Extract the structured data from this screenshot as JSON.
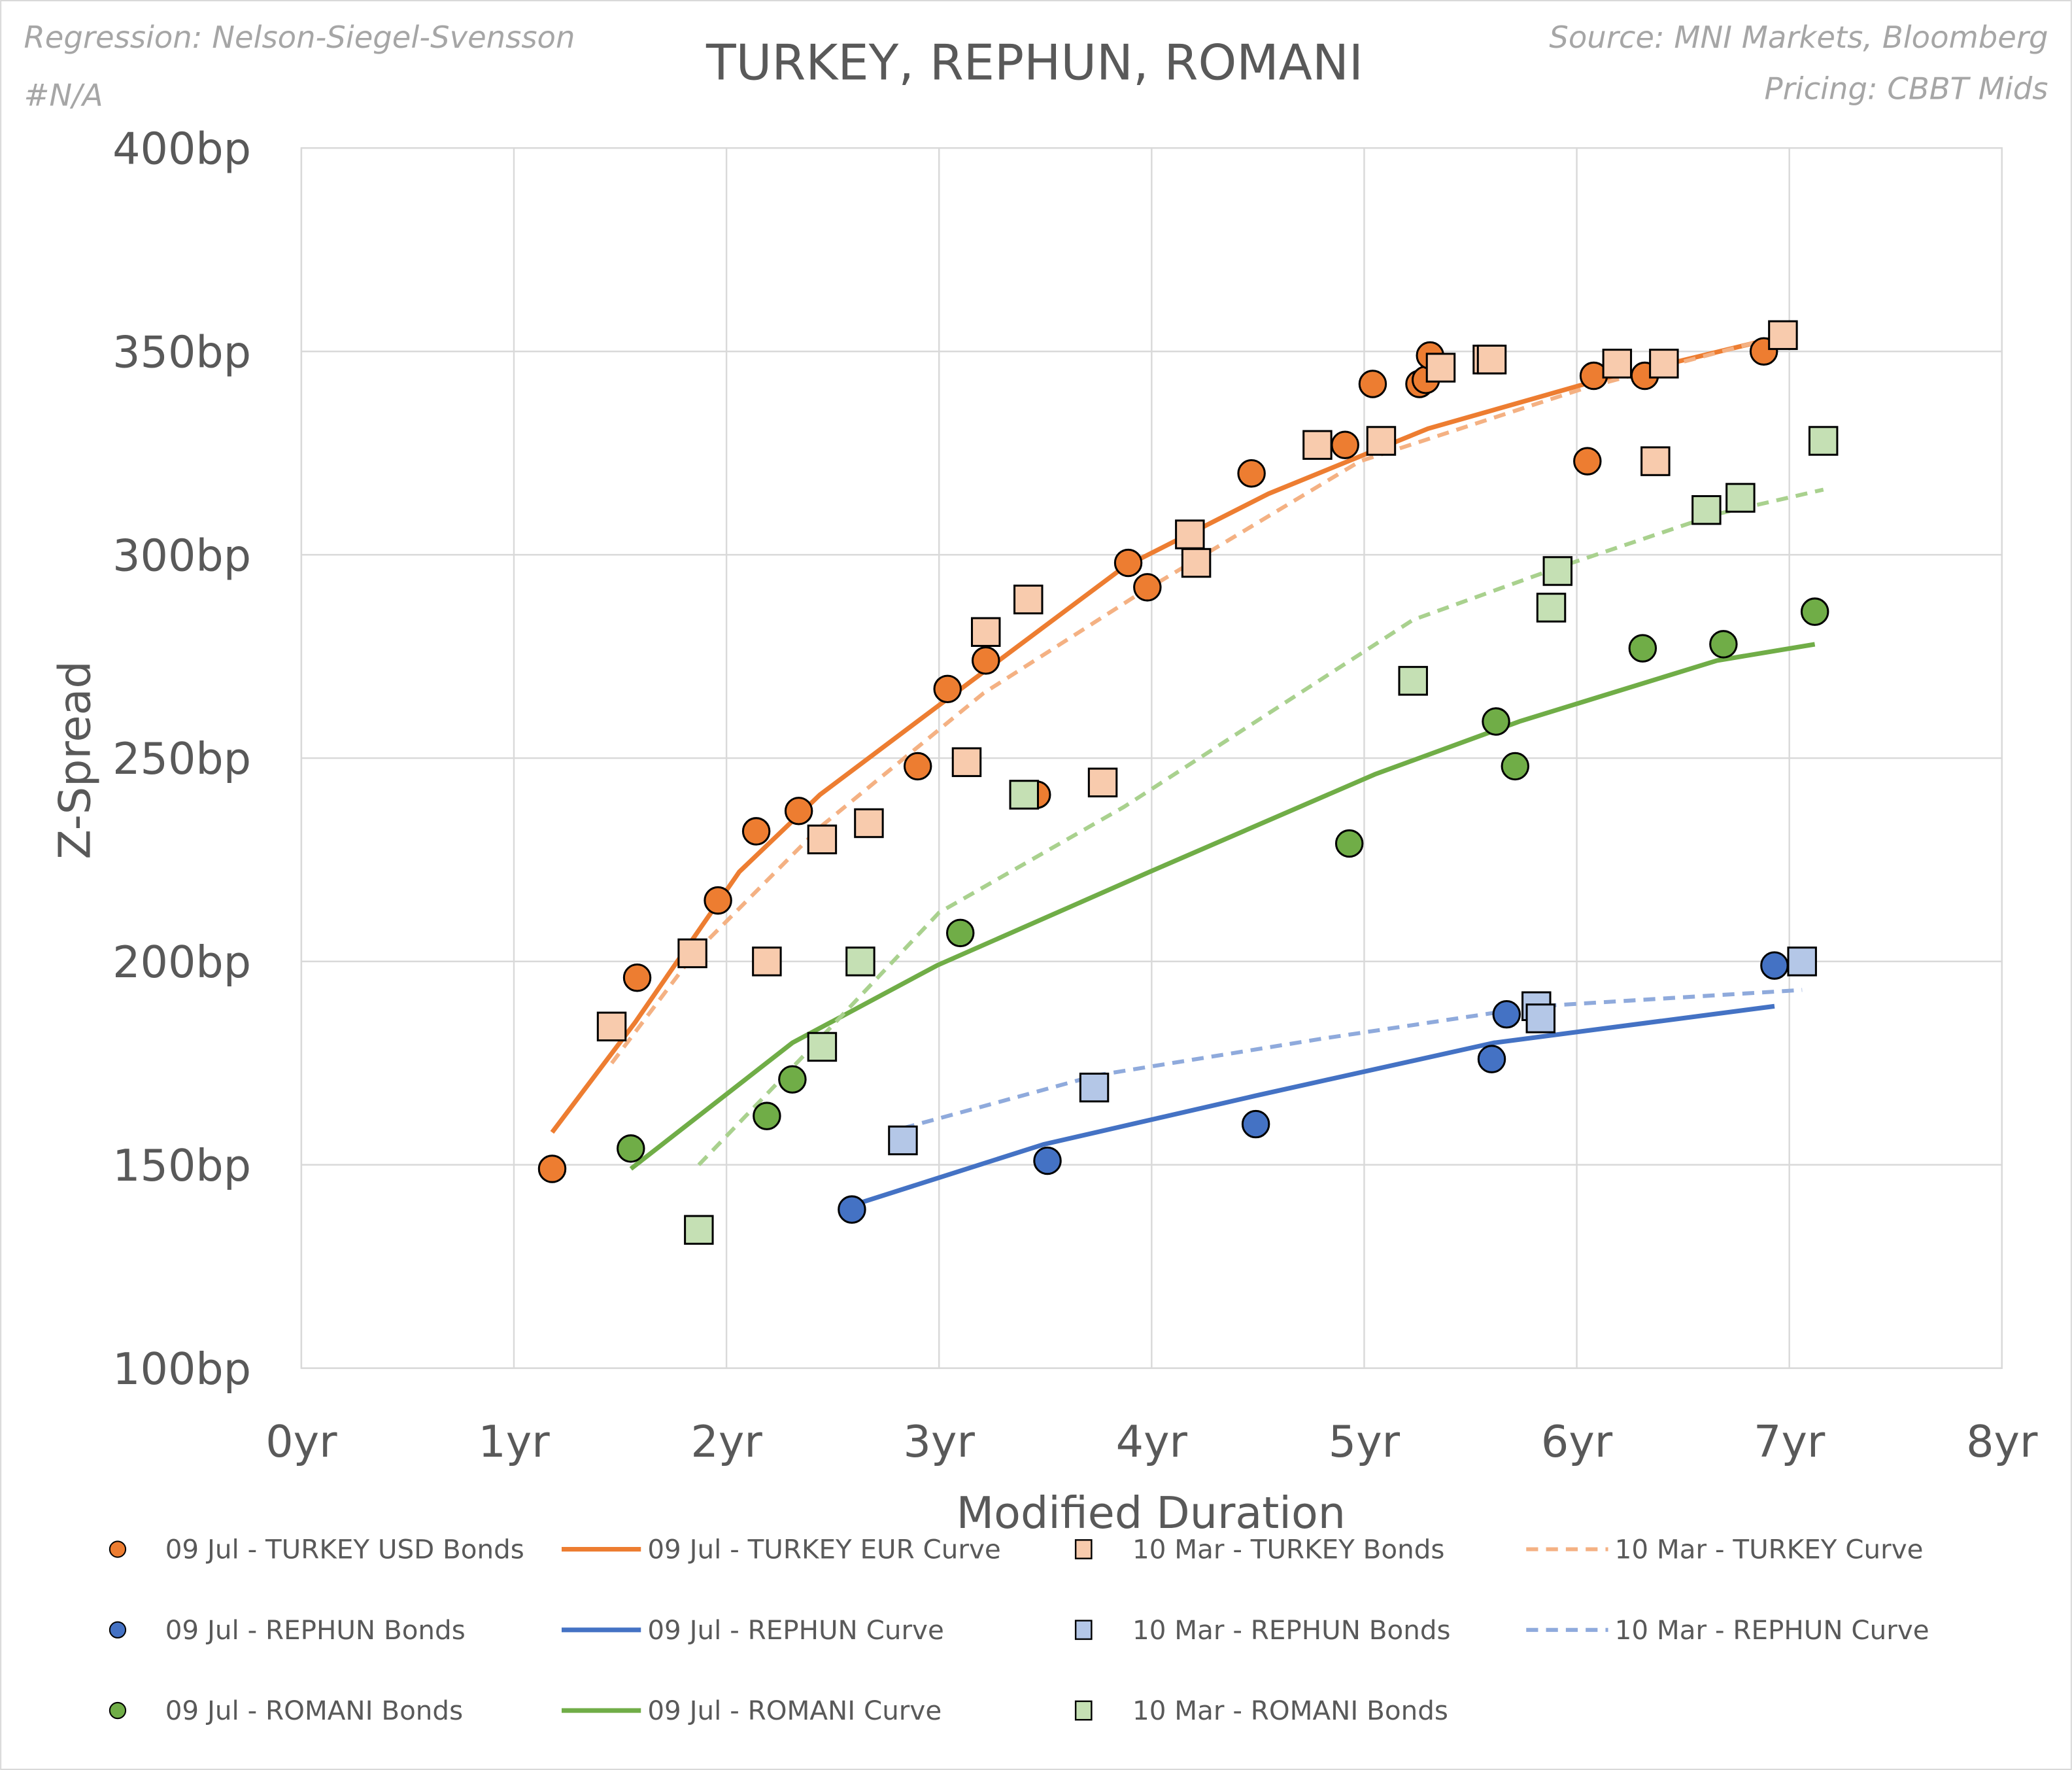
{
  "chart_data": {
    "type": "scatter",
    "title": "TURKEY, REPHUN, ROMANI",
    "notes_left": [
      "Regression: Nelson-Siegel-Svensson",
      "#N/A"
    ],
    "notes_right": [
      "Source: MNI Markets, Bloomberg",
      "Pricing: CBBT Mids"
    ],
    "xlabel": "Modified Duration",
    "ylabel": "Z-Spread",
    "xlim": [
      0,
      8
    ],
    "ylim": [
      100,
      400
    ],
    "x_ticks": [
      0,
      1,
      2,
      3,
      4,
      5,
      6,
      7,
      8
    ],
    "x_tick_labels": [
      "0yr",
      "1yr",
      "2yr",
      "3yr",
      "4yr",
      "5yr",
      "6yr",
      "7yr",
      "8yr"
    ],
    "y_ticks": [
      100,
      150,
      200,
      250,
      300,
      350,
      400
    ],
    "y_tick_labels": [
      "100bp",
      "150bp",
      "200bp",
      "250bp",
      "300bp",
      "350bp",
      "400bp"
    ],
    "grid": true,
    "legend_placement": "bottom",
    "series": [
      {
        "name": "09 Jul - TURKEY  USD Bonds",
        "kind": "circle",
        "color": "#ED7D31",
        "stroke": "#000000",
        "points": [
          [
            1.18,
            149
          ],
          [
            1.58,
            196
          ],
          [
            1.96,
            215
          ],
          [
            2.14,
            232
          ],
          [
            2.34,
            237
          ],
          [
            2.9,
            248
          ],
          [
            3.04,
            267
          ],
          [
            3.22,
            274
          ],
          [
            3.46,
            241
          ],
          [
            3.89,
            298
          ],
          [
            3.98,
            292
          ],
          [
            4.47,
            320
          ],
          [
            4.91,
            327
          ],
          [
            5.04,
            342
          ],
          [
            5.26,
            342
          ],
          [
            5.29,
            343
          ],
          [
            5.31,
            349
          ],
          [
            6.05,
            323
          ],
          [
            6.08,
            344
          ],
          [
            6.32,
            344
          ],
          [
            6.88,
            350
          ]
        ]
      },
      {
        "name": "09 Jul - TURKEY EUR Curve",
        "kind": "line",
        "color": "#ED7D31",
        "points": [
          [
            1.18,
            158
          ],
          [
            1.57,
            185
          ],
          [
            2.06,
            222
          ],
          [
            2.44,
            241
          ],
          [
            3.0,
            263
          ],
          [
            3.87,
            297
          ],
          [
            4.55,
            315
          ],
          [
            5.3,
            331
          ],
          [
            6.04,
            342
          ],
          [
            6.91,
            353
          ]
        ]
      },
      {
        "name": "10 Mar - TURKEY Bonds",
        "kind": "square",
        "color": "#F8CBAD",
        "stroke": "#000000",
        "points": [
          [
            1.46,
            184
          ],
          [
            1.84,
            202
          ],
          [
            2.19,
            200
          ],
          [
            2.45,
            230
          ],
          [
            2.67,
            234
          ],
          [
            3.13,
            249
          ],
          [
            3.22,
            281
          ],
          [
            3.42,
            289
          ],
          [
            3.77,
            244
          ],
          [
            4.18,
            305
          ],
          [
            4.21,
            298
          ],
          [
            4.78,
            327
          ],
          [
            5.08,
            328
          ],
          [
            5.36,
            346
          ],
          [
            5.58,
            348
          ],
          [
            5.6,
            348
          ],
          [
            6.19,
            347
          ],
          [
            6.37,
            323
          ],
          [
            6.41,
            347
          ],
          [
            6.97,
            354
          ]
        ]
      },
      {
        "name": "10 Mar - TURKEY Curve",
        "kind": "dash",
        "color": "#F4B183",
        "points": [
          [
            1.46,
            175
          ],
          [
            1.85,
            202
          ],
          [
            2.44,
            233
          ],
          [
            3.21,
            266
          ],
          [
            3.93,
            290
          ],
          [
            4.98,
            323
          ],
          [
            6.04,
            341
          ],
          [
            6.97,
            354
          ]
        ]
      },
      {
        "name": "09 Jul - REPHUN Bonds",
        "kind": "circle",
        "color": "#4472C4",
        "stroke": "#000000",
        "points": [
          [
            2.59,
            139
          ],
          [
            3.51,
            151
          ],
          [
            4.49,
            160
          ],
          [
            5.6,
            176
          ],
          [
            5.67,
            187
          ],
          [
            6.93,
            199
          ]
        ]
      },
      {
        "name": "09 Jul - REPHUN Curve",
        "kind": "line",
        "color": "#4472C4",
        "points": [
          [
            2.59,
            140
          ],
          [
            3.49,
            155
          ],
          [
            4.49,
            167
          ],
          [
            5.61,
            180
          ],
          [
            6.93,
            189
          ]
        ]
      },
      {
        "name": "10 Mar - REPHUN Bonds",
        "kind": "square",
        "color": "#B4C7E7",
        "stroke": "#000000",
        "points": [
          [
            2.83,
            156
          ],
          [
            3.73,
            169
          ],
          [
            5.81,
            189
          ],
          [
            5.83,
            186
          ],
          [
            7.06,
            200
          ]
        ]
      },
      {
        "name": "10 Mar - REPHUN Curve",
        "kind": "dash",
        "color": "#8FAADC",
        "points": [
          [
            2.83,
            159
          ],
          [
            3.74,
            172
          ],
          [
            4.8,
            181
          ],
          [
            5.82,
            189
          ],
          [
            7.06,
            193
          ]
        ]
      },
      {
        "name": "09 Jul - ROMANI Bonds",
        "kind": "circle",
        "color": "#70AD47",
        "stroke": "#000000",
        "points": [
          [
            1.55,
            154
          ],
          [
            2.19,
            162
          ],
          [
            2.31,
            171
          ],
          [
            3.1,
            207
          ],
          [
            4.93,
            229
          ],
          [
            5.62,
            259
          ],
          [
            5.71,
            248
          ],
          [
            6.31,
            277
          ],
          [
            6.69,
            278
          ],
          [
            7.12,
            286
          ]
        ]
      },
      {
        "name": "09 Jul - ROMANI Curve",
        "kind": "line",
        "color": "#70AD47",
        "points": [
          [
            1.55,
            149
          ],
          [
            2.31,
            180
          ],
          [
            2.99,
            199
          ],
          [
            3.99,
            222
          ],
          [
            5.05,
            246
          ],
          [
            5.73,
            259
          ],
          [
            6.66,
            274
          ],
          [
            7.12,
            278
          ]
        ]
      },
      {
        "name": "10 Mar - ROMANI Bonds",
        "kind": "square",
        "color": "#C5E0B4",
        "stroke": "#000000",
        "points": [
          [
            1.87,
            134
          ],
          [
            2.45,
            179
          ],
          [
            2.63,
            200
          ],
          [
            3.4,
            241
          ],
          [
            5.23,
            269
          ],
          [
            5.88,
            287
          ],
          [
            5.91,
            296
          ],
          [
            6.61,
            311
          ],
          [
            6.77,
            314
          ],
          [
            7.16,
            328
          ]
        ]
      },
      {
        "kind": "dash",
        "color": "#A9D18E",
        "legend": false,
        "points": [
          [
            1.87,
            150
          ],
          [
            2.44,
            181
          ],
          [
            3.0,
            212
          ],
          [
            3.87,
            238
          ],
          [
            5.23,
            284
          ],
          [
            5.92,
            297
          ],
          [
            6.66,
            310
          ],
          [
            7.16,
            316
          ]
        ]
      }
    ]
  }
}
